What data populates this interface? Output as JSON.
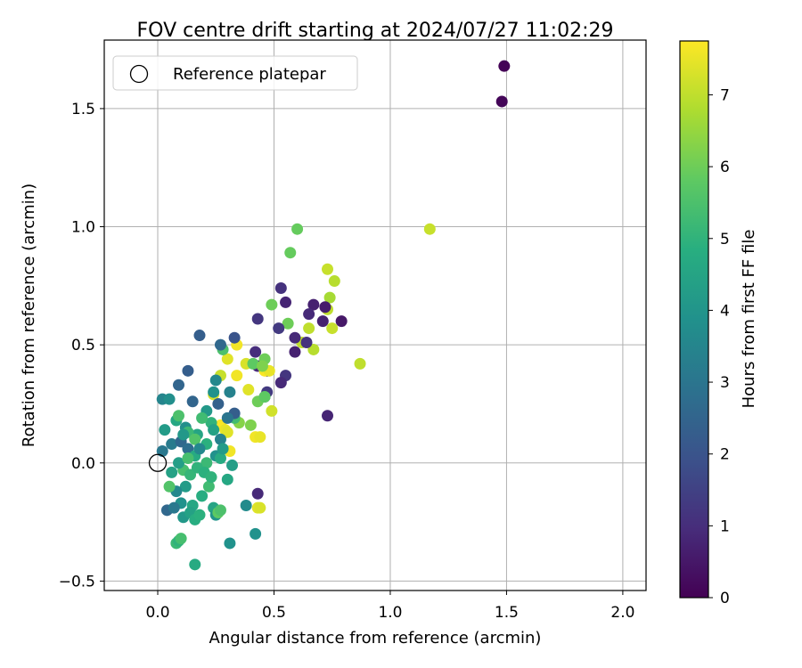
{
  "chart_data": {
    "type": "scatter",
    "title": "FOV centre drift starting at 2024/07/27 11:02:29",
    "xlabel": "Angular distance from reference (arcmin)",
    "ylabel": "Rotation from reference (arcmin)",
    "xlim": [
      -0.23,
      2.1
    ],
    "ylim": [
      -0.54,
      1.79
    ],
    "xticks": [
      0.0,
      0.5,
      1.0,
      1.5,
      2.0
    ],
    "xtick_labels": [
      "0.0",
      "0.5",
      "1.0",
      "1.5",
      "2.0"
    ],
    "yticks": [
      -0.5,
      0.0,
      0.5,
      1.0,
      1.5
    ],
    "ytick_labels": [
      "−0.5",
      "0.0",
      "0.5",
      "1.0",
      "1.5"
    ],
    "grid": true,
    "legend": {
      "placement": "top-left",
      "entries": [
        "Reference platepar"
      ]
    },
    "reference_point": {
      "x": 0.0,
      "y": 0.0,
      "label": "Reference platepar"
    },
    "colorbar": {
      "label": "Hours from first FF file",
      "range": [
        0,
        7.75
      ],
      "ticks": [
        0,
        1,
        2,
        3,
        4,
        5,
        6,
        7
      ],
      "tick_labels": [
        "0",
        "1",
        "2",
        "3",
        "4",
        "5",
        "6",
        "7"
      ],
      "colormap": "viridis"
    },
    "points": [
      [
        1.49,
        1.68,
        0.05
      ],
      [
        1.48,
        1.53,
        0.1
      ],
      [
        1.17,
        0.99,
        7.1
      ],
      [
        0.87,
        0.42,
        7.0
      ],
      [
        0.6,
        0.99,
        5.9
      ],
      [
        0.57,
        0.89,
        5.9
      ],
      [
        0.49,
        0.67,
        6.0
      ],
      [
        0.56,
        0.59,
        6.0
      ],
      [
        0.73,
        0.82,
        7.1
      ],
      [
        0.76,
        0.77,
        6.9
      ],
      [
        0.74,
        0.7,
        6.7
      ],
      [
        0.73,
        0.65,
        7.0
      ],
      [
        0.65,
        0.57,
        7.0
      ],
      [
        0.75,
        0.57,
        7.1
      ],
      [
        0.62,
        0.51,
        7.0
      ],
      [
        0.67,
        0.48,
        6.9
      ],
      [
        0.53,
        0.74,
        1.1
      ],
      [
        0.55,
        0.68,
        0.8
      ],
      [
        0.67,
        0.67,
        0.7
      ],
      [
        0.65,
        0.63,
        0.9
      ],
      [
        0.43,
        0.61,
        1.2
      ],
      [
        0.72,
        0.66,
        0.6
      ],
      [
        0.71,
        0.6,
        0.7
      ],
      [
        0.79,
        0.6,
        0.5
      ],
      [
        0.52,
        0.57,
        1.3
      ],
      [
        0.59,
        0.53,
        0.9
      ],
      [
        0.64,
        0.51,
        1.1
      ],
      [
        0.59,
        0.47,
        0.7
      ],
      [
        0.42,
        0.47,
        1.0
      ],
      [
        0.43,
        0.41,
        0.9
      ],
      [
        0.47,
        0.39,
        0.8
      ],
      [
        0.55,
        0.37,
        1.2
      ],
      [
        0.53,
        0.34,
        0.9
      ],
      [
        0.47,
        0.3,
        1.3
      ],
      [
        0.73,
        0.2,
        0.8
      ],
      [
        0.46,
        0.28,
        1.5
      ],
      [
        0.43,
        -0.13,
        0.9
      ],
      [
        0.43,
        -0.19,
        7.4
      ],
      [
        0.34,
        0.5,
        7.6
      ],
      [
        0.3,
        0.44,
        7.4
      ],
      [
        0.46,
        0.39,
        7.7
      ],
      [
        0.48,
        0.39,
        7.5
      ],
      [
        0.34,
        0.37,
        7.6
      ],
      [
        0.27,
        0.37,
        7.1
      ],
      [
        0.38,
        0.42,
        7.3
      ],
      [
        0.39,
        0.31,
        7.4
      ],
      [
        0.49,
        0.22,
        7.2
      ],
      [
        0.24,
        0.29,
        7.3
      ],
      [
        0.27,
        0.16,
        7.7
      ],
      [
        0.29,
        0.14,
        7.5
      ],
      [
        0.3,
        0.13,
        7.4
      ],
      [
        0.31,
        0.05,
        7.6
      ],
      [
        0.42,
        0.11,
        7.6
      ],
      [
        0.44,
        0.11,
        7.5
      ],
      [
        0.44,
        -0.19,
        7.3
      ],
      [
        0.46,
        0.44,
        6.0
      ],
      [
        0.28,
        0.48,
        5.5
      ],
      [
        0.41,
        0.42,
        5.8
      ],
      [
        0.45,
        0.41,
        6.2
      ],
      [
        0.4,
        0.16,
        6.2
      ],
      [
        0.43,
        0.26,
        6.0
      ],
      [
        0.46,
        0.28,
        5.8
      ],
      [
        0.35,
        0.17,
        6.3
      ],
      [
        0.33,
        0.19,
        5.3
      ],
      [
        0.18,
        0.54,
        2.3
      ],
      [
        0.27,
        0.5,
        2.6
      ],
      [
        0.33,
        0.53,
        2.0
      ],
      [
        0.13,
        0.39,
        2.3
      ],
      [
        0.09,
        0.33,
        2.5
      ],
      [
        0.25,
        0.35,
        3.6
      ],
      [
        0.31,
        0.3,
        3.4
      ],
      [
        0.24,
        0.3,
        3.9
      ],
      [
        0.26,
        0.25,
        2.4
      ],
      [
        0.15,
        0.26,
        2.5
      ],
      [
        0.02,
        0.27,
        3.5
      ],
      [
        0.05,
        0.27,
        3.8
      ],
      [
        0.33,
        0.21,
        2.3
      ],
      [
        0.3,
        0.19,
        3.0
      ],
      [
        0.21,
        0.22,
        4.1
      ],
      [
        0.08,
        0.18,
        4.6
      ],
      [
        0.12,
        0.15,
        3.8
      ],
      [
        0.03,
        0.14,
        4.2
      ],
      [
        0.06,
        0.08,
        3.2
      ],
      [
        0.02,
        0.05,
        3.1
      ],
      [
        0.1,
        0.09,
        2.6
      ],
      [
        0.13,
        0.06,
        2.8
      ],
      [
        0.17,
        0.12,
        4.5
      ],
      [
        0.23,
        0.17,
        5.0
      ],
      [
        0.24,
        0.14,
        4.4
      ],
      [
        0.27,
        0.1,
        3.4
      ],
      [
        0.21,
        0.08,
        4.9
      ],
      [
        0.16,
        0.03,
        4.7
      ],
      [
        0.21,
        0.0,
        5.2
      ],
      [
        0.25,
        0.03,
        3.9
      ],
      [
        0.32,
        -0.01,
        4.3
      ],
      [
        0.3,
        -0.07,
        4.6
      ],
      [
        0.09,
        0.2,
        5.5
      ],
      [
        0.13,
        0.13,
        5.2
      ],
      [
        0.16,
        0.1,
        5.6
      ],
      [
        0.19,
        0.19,
        5.3
      ],
      [
        0.11,
        -0.03,
        5.4
      ],
      [
        0.14,
        -0.05,
        5.1
      ],
      [
        0.17,
        -0.02,
        5.0
      ],
      [
        0.2,
        -0.04,
        4.9
      ],
      [
        0.22,
        -0.1,
        5.3
      ],
      [
        0.12,
        -0.1,
        4.2
      ],
      [
        0.08,
        -0.12,
        3.6
      ],
      [
        0.15,
        -0.18,
        4.6
      ],
      [
        0.19,
        -0.14,
        4.8
      ],
      [
        0.06,
        -0.04,
        4.4
      ],
      [
        0.05,
        -0.1,
        5.6
      ],
      [
        0.1,
        -0.17,
        3.9
      ],
      [
        0.04,
        -0.2,
        2.6
      ],
      [
        0.07,
        -0.19,
        3.1
      ],
      [
        0.11,
        -0.23,
        4.1
      ],
      [
        0.14,
        -0.21,
        4.4
      ],
      [
        0.16,
        -0.24,
        4.8
      ],
      [
        0.18,
        -0.22,
        4.9
      ],
      [
        0.24,
        -0.19,
        4.5
      ],
      [
        0.25,
        -0.22,
        4.0
      ],
      [
        0.26,
        -0.21,
        5.8
      ],
      [
        0.27,
        -0.2,
        5.5
      ],
      [
        0.38,
        -0.18,
        3.7
      ],
      [
        0.42,
        -0.3,
        3.9
      ],
      [
        0.31,
        -0.34,
        3.9
      ],
      [
        0.08,
        -0.34,
        5.2
      ],
      [
        0.09,
        -0.33,
        5.0
      ],
      [
        0.1,
        -0.32,
        5.4
      ],
      [
        0.16,
        -0.43,
        4.7
      ],
      [
        0.11,
        0.12,
        4.1
      ],
      [
        0.18,
        0.06,
        3.6
      ],
      [
        0.09,
        0.0,
        4.3
      ],
      [
        0.13,
        0.02,
        5.4
      ],
      [
        0.23,
        -0.06,
        5.0
      ],
      [
        0.27,
        0.02,
        4.7
      ],
      [
        0.28,
        0.06,
        4.2
      ]
    ]
  }
}
